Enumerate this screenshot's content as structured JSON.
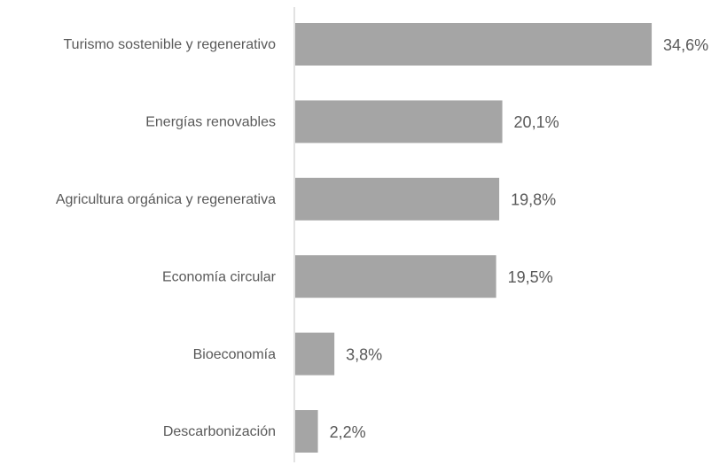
{
  "chart_data": {
    "type": "barh",
    "categories": [
      "Turismo sostenible y regenerativo",
      "Energías renovables",
      "Agricultura orgánica y regenerativa",
      "Economía circular",
      "Bioeconomía",
      "Descarbonización"
    ],
    "values": [
      34.6,
      20.1,
      19.8,
      19.5,
      3.8,
      2.2
    ],
    "value_labels": [
      "34,6%",
      "20,1%",
      "19,8%",
      "19,5%",
      "3,8%",
      "2,2%"
    ],
    "color": "#a5a5a5"
  }
}
